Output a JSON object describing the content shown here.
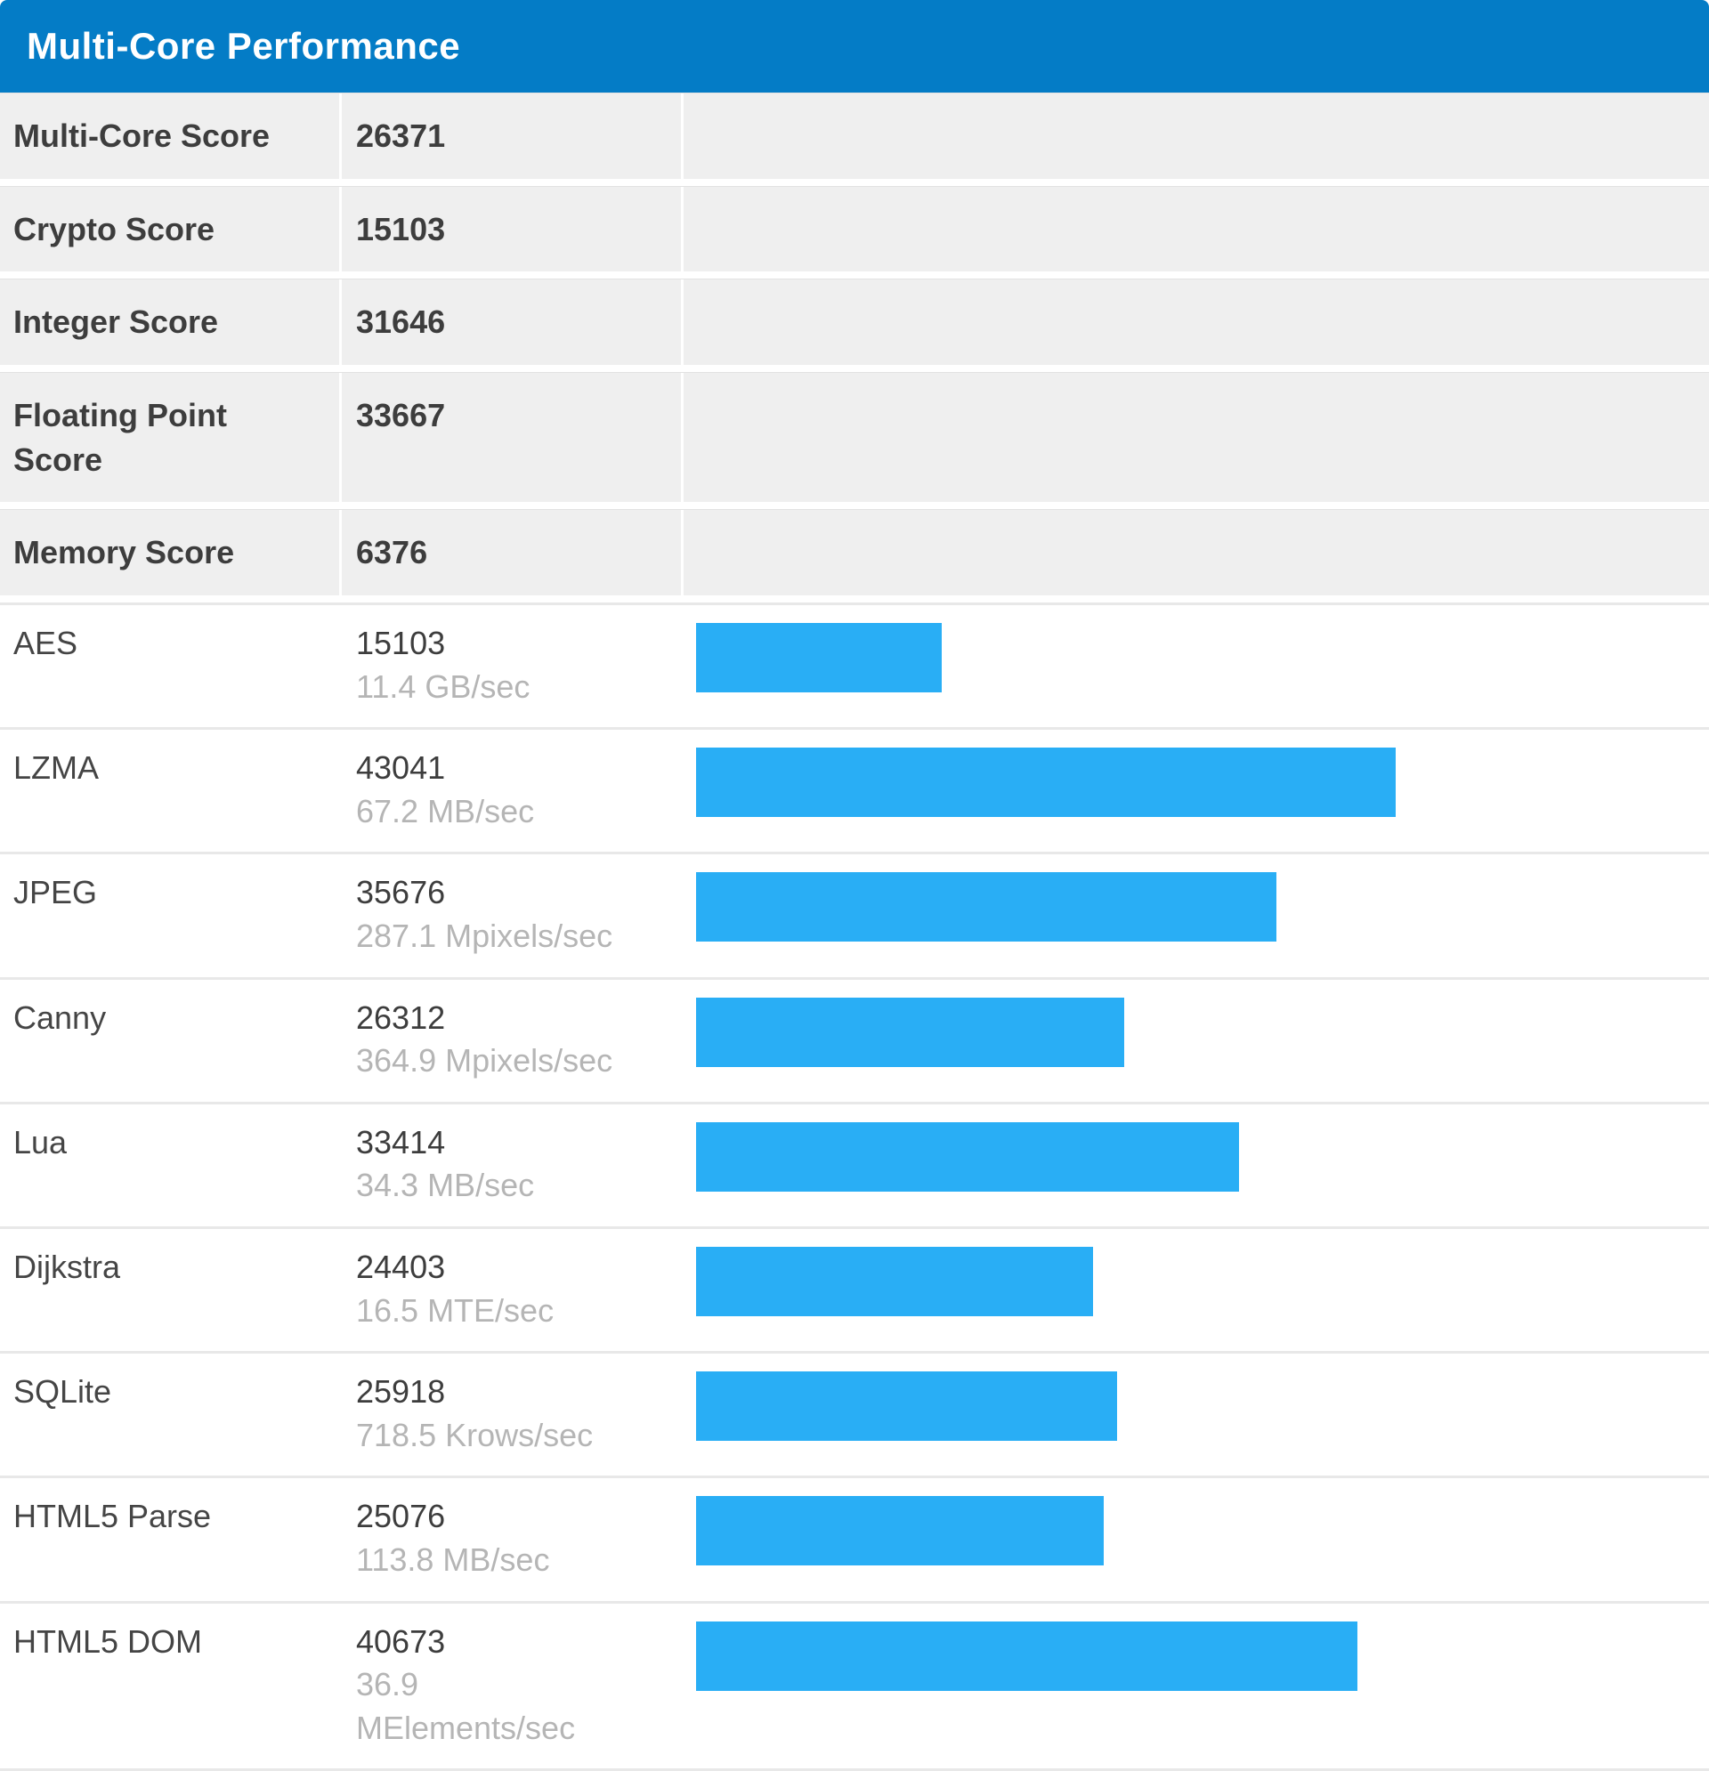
{
  "panel": {
    "title": "Multi-Core Performance"
  },
  "colors": {
    "header_bg": "#047cc6",
    "header_text": "#ffffff",
    "bar_fill": "#29aef5",
    "summary_row_bg": "#efefef",
    "row_separator": "#e8e8e8",
    "label_text": "#3d3d3d",
    "rate_text": "#b5b5b5"
  },
  "summary": [
    {
      "label": "Multi-Core Score",
      "value": "26371"
    },
    {
      "label": "Crypto Score",
      "value": "15103"
    },
    {
      "label": "Integer Score",
      "value": "31646"
    },
    {
      "label": "Floating Point Score",
      "value": "33667"
    },
    {
      "label": "Memory Score",
      "value": "6376"
    }
  ],
  "benchmarks": [
    {
      "name": "AES",
      "score": "15103",
      "rate": "11.4 GB/sec"
    },
    {
      "name": "LZMA",
      "score": "43041",
      "rate": "67.2 MB/sec"
    },
    {
      "name": "JPEG",
      "score": "35676",
      "rate": "287.1 Mpixels/sec"
    },
    {
      "name": "Canny",
      "score": "26312",
      "rate": "364.9 Mpixels/sec"
    },
    {
      "name": "Lua",
      "score": "33414",
      "rate": "34.3 MB/sec"
    },
    {
      "name": "Dijkstra",
      "score": "24403",
      "rate": "16.5 MTE/sec"
    },
    {
      "name": "SQLite",
      "score": "25918",
      "rate": "718.5 Krows/sec"
    },
    {
      "name": "HTML5 Parse",
      "score": "25076",
      "rate": "113.8 MB/sec"
    },
    {
      "name": "HTML5 DOM",
      "score": "40673",
      "rate": "36.9 MElements/sec"
    }
  ],
  "chart_data": {
    "type": "bar",
    "orientation": "horizontal",
    "title": "Multi-Core Performance",
    "categories": [
      "AES",
      "LZMA",
      "JPEG",
      "Canny",
      "Lua",
      "Dijkstra",
      "SQLite",
      "HTML5 Parse",
      "HTML5 DOM"
    ],
    "values": [
      15103,
      43041,
      35676,
      26312,
      33414,
      24403,
      25918,
      25076,
      40673
    ],
    "rate_labels": [
      "11.4 GB/sec",
      "67.2 MB/sec",
      "287.1 Mpixels/sec",
      "364.9 Mpixels/sec",
      "34.3 MB/sec",
      "16.5 MTE/sec",
      "718.5 Krows/sec",
      "113.8 MB/sec",
      "36.9 MElements/sec"
    ],
    "summary_scores": {
      "Multi-Core Score": 26371,
      "Crypto Score": 15103,
      "Integer Score": 31646,
      "Floating Point Score": 33667,
      "Memory Score": 6376
    },
    "xlim": [
      0,
      61750
    ],
    "bar_color": "#29aef5",
    "grid": false,
    "legend": false
  }
}
